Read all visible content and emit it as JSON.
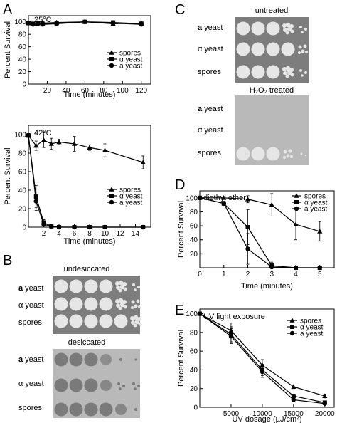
{
  "panels": {
    "A": "A",
    "B": "B",
    "C": "C",
    "D": "D",
    "E": "E"
  },
  "chart_data": [
    {
      "id": "A_top",
      "type": "line",
      "annotation": "25°C",
      "xlabel": "Time (minutes)",
      "ylabel": "Percent Survival",
      "xlim": [
        0,
        130
      ],
      "ylim": [
        0,
        110
      ],
      "xticks": [
        20,
        40,
        60,
        80,
        100,
        120
      ],
      "yticks": [
        0,
        20,
        40,
        60,
        80,
        100
      ],
      "legend_position": "bottom-right",
      "series": [
        {
          "name": "spores",
          "marker": "triangle",
          "x": [
            0,
            5,
            10,
            15,
            30,
            60,
            90,
            120
          ],
          "y": [
            99,
            97,
            99,
            98,
            99,
            100,
            97,
            98
          ],
          "err": [
            2,
            2,
            2,
            2,
            2,
            1,
            3,
            2
          ]
        },
        {
          "name": "α yeast",
          "marker": "square",
          "x": [
            0,
            5,
            10,
            15,
            30,
            60,
            90,
            120
          ],
          "y": [
            98,
            97,
            98,
            97,
            98,
            100,
            99,
            97
          ],
          "err": [
            2,
            2,
            2,
            2,
            2,
            1,
            3,
            2
          ]
        },
        {
          "name": "a yeast",
          "marker": "circle",
          "x": [
            0,
            5,
            10,
            15,
            30,
            60,
            90,
            120
          ],
          "y": [
            98,
            96,
            97,
            96,
            97,
            100,
            98,
            96
          ],
          "err": [
            2,
            2,
            2,
            2,
            2,
            1,
            3,
            2
          ]
        }
      ]
    },
    {
      "id": "A_bottom",
      "type": "line",
      "annotation": "42°C",
      "xlabel": "Time (minutes)",
      "ylabel": "Percent Survival",
      "xlim": [
        0,
        16
      ],
      "ylim": [
        0,
        110
      ],
      "xticks": [
        2,
        4,
        6,
        8,
        10,
        12,
        14
      ],
      "yticks": [
        0,
        20,
        40,
        60,
        80,
        100
      ],
      "legend_position": "bottom-right",
      "series": [
        {
          "name": "spores",
          "marker": "triangle",
          "x": [
            0,
            1,
            2,
            3,
            4,
            6,
            8,
            10,
            15
          ],
          "y": [
            99,
            88,
            94,
            90,
            92,
            90,
            86,
            83,
            70
          ],
          "err": [
            2,
            5,
            8,
            6,
            3,
            8,
            3,
            7,
            7
          ]
        },
        {
          "name": "α yeast",
          "marker": "square",
          "x": [
            0,
            1,
            2,
            3,
            4,
            6,
            8,
            10,
            15
          ],
          "y": [
            99,
            33,
            5,
            1,
            0,
            0,
            0,
            0,
            0
          ],
          "err": [
            2,
            12,
            3,
            1,
            0,
            0,
            0,
            0,
            0
          ]
        },
        {
          "name": "a yeast",
          "marker": "circle",
          "x": [
            0,
            1,
            2,
            3,
            4,
            6,
            8,
            10,
            15
          ],
          "y": [
            99,
            28,
            3,
            1,
            0,
            0,
            0,
            0,
            0
          ],
          "err": [
            2,
            10,
            2,
            1,
            0,
            0,
            0,
            0,
            0
          ]
        }
      ]
    },
    {
      "id": "D",
      "type": "line",
      "annotation": "diethyl ether",
      "xlabel": "Time (minutes)",
      "ylabel": "Percent Survival",
      "xlim": [
        0,
        5.6
      ],
      "ylim": [
        0,
        110
      ],
      "xticks": [
        0,
        1,
        2,
        3,
        4,
        5
      ],
      "yticks": [
        20,
        40,
        60,
        80,
        100
      ],
      "legend_position": "top-right",
      "series": [
        {
          "name": "spores",
          "marker": "triangle",
          "x": [
            0,
            1,
            2,
            3,
            4,
            5
          ],
          "y": [
            100,
            100,
            98,
            90,
            62,
            52
          ],
          "err": [
            0,
            1,
            5,
            16,
            22,
            14
          ]
        },
        {
          "name": "α yeast",
          "marker": "square",
          "x": [
            0,
            1,
            2,
            3,
            4,
            5
          ],
          "y": [
            100,
            92,
            58,
            3,
            0,
            0
          ],
          "err": [
            0,
            3,
            25,
            5,
            0,
            0
          ]
        },
        {
          "name": "a yeast",
          "marker": "circle",
          "x": [
            0,
            1,
            2,
            3,
            4,
            5
          ],
          "y": [
            100,
            92,
            27,
            1,
            0,
            0
          ],
          "err": [
            0,
            3,
            22,
            2,
            0,
            0
          ]
        }
      ]
    },
    {
      "id": "E",
      "type": "line",
      "annotation": "UV light exposure",
      "xlabel": "UV dosage (µJ/cm²)",
      "ylabel": "Percent Survival",
      "xlim": [
        0,
        21500
      ],
      "ylim": [
        0,
        105
      ],
      "xticks": [
        5000,
        10000,
        15000,
        20000
      ],
      "yticks": [
        0,
        20,
        40,
        60,
        80,
        100
      ],
      "legend_position": "top-right",
      "series": [
        {
          "name": "spores",
          "marker": "triangle",
          "x": [
            0,
            5000,
            10000,
            15000,
            20000
          ],
          "y": [
            100,
            82,
            45,
            22,
            12
          ],
          "err": [
            1,
            8,
            6,
            2,
            2
          ]
        },
        {
          "name": "α yeast",
          "marker": "square",
          "x": [
            0,
            5000,
            10000,
            15000,
            20000
          ],
          "y": [
            100,
            78,
            40,
            12,
            5
          ],
          "err": [
            1,
            8,
            6,
            2,
            1
          ]
        },
        {
          "name": "a yeast",
          "marker": "circle",
          "x": [
            0,
            5000,
            10000,
            15000,
            20000
          ],
          "y": [
            100,
            76,
            38,
            8,
            4
          ],
          "err": [
            1,
            8,
            6,
            2,
            1
          ]
        }
      ]
    }
  ],
  "plates": {
    "B_top_title": "undesiccated",
    "B_bottom_title": "desiccated",
    "C_top_title": "untreated",
    "C_bottom_title": "H₂O₂ treated",
    "rows": {
      "a_prefix": "a",
      "yeast_suffix": " yeast",
      "alpha": "α yeast",
      "spores": "spores"
    },
    "colors": {
      "dark_plate": "#7f7f7f",
      "light_plate": "#b8b8b8",
      "colony_light": "#e6e6e6",
      "colony_dark": "#7a7a7a"
    }
  }
}
